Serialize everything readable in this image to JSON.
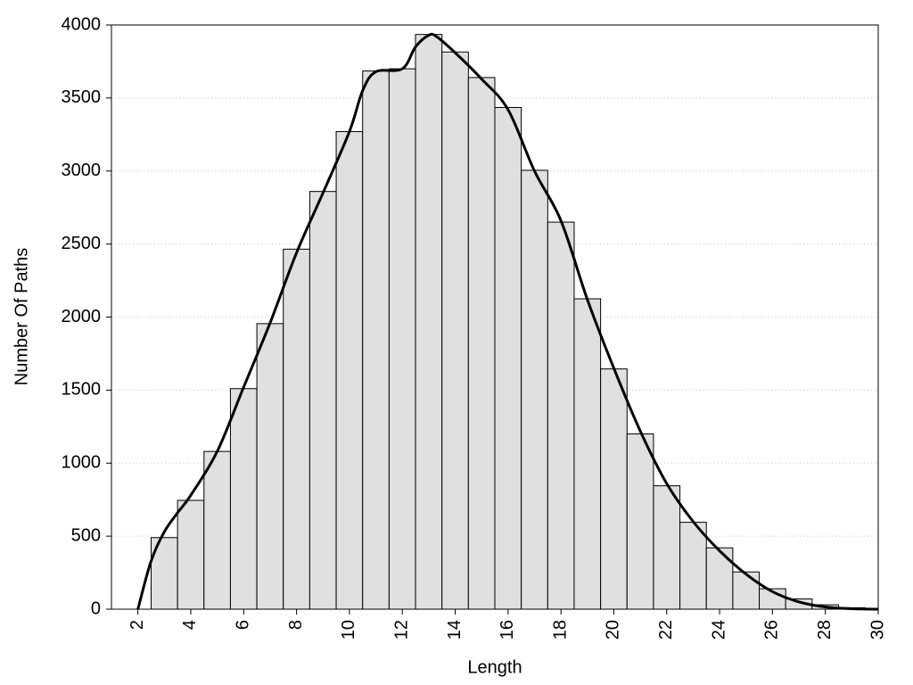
{
  "chart_data": {
    "type": "histogram",
    "xlabel": "Length",
    "ylabel": "Number Of Paths",
    "bins": [
      2.5,
      3.5,
      4.5,
      5.5,
      6.5,
      7.5,
      8.5,
      9.5,
      10.5,
      11.5,
      12.5,
      13.5,
      14.5,
      15.5,
      16.5,
      17.5,
      18.5,
      19.5,
      20.5,
      21.5,
      22.5,
      23.5,
      24.5,
      25.5,
      26.5,
      27.5,
      28.5,
      29.5
    ],
    "values": [
      490,
      745,
      1080,
      1510,
      1955,
      2465,
      2860,
      3270,
      3685,
      3700,
      3935,
      3815,
      3640,
      3435,
      3005,
      2650,
      2125,
      1645,
      1200,
      845,
      595,
      420,
      255,
      140,
      70,
      30,
      10
    ],
    "color": "#e0e0e0",
    "line": {
      "color": "#000000",
      "x": [
        2,
        2.5,
        3,
        3.5,
        4,
        5,
        6,
        7,
        8,
        9,
        10,
        10.5,
        11,
        12,
        12.5,
        13,
        13.3,
        14,
        15,
        16,
        17,
        18,
        19,
        20,
        21,
        22,
        23,
        24,
        25,
        26,
        27,
        28,
        29,
        30
      ],
      "values": [
        0,
        330,
        530,
        660,
        780,
        1080,
        1520,
        1960,
        2440,
        2850,
        3270,
        3550,
        3680,
        3700,
        3850,
        3930,
        3920,
        3810,
        3630,
        3420,
        3000,
        2660,
        2120,
        1650,
        1220,
        860,
        600,
        400,
        240,
        120,
        50,
        15,
        3,
        0
      ]
    },
    "xlim": [
      1,
      30
    ],
    "xticks": [
      2,
      4,
      6,
      8,
      10,
      12,
      14,
      16,
      18,
      20,
      22,
      24,
      26,
      28,
      30
    ],
    "ylim": [
      0,
      4000
    ],
    "yticks": [
      0,
      500,
      1000,
      1500,
      2000,
      2500,
      3000,
      3500,
      4000
    ],
    "grid": true
  }
}
